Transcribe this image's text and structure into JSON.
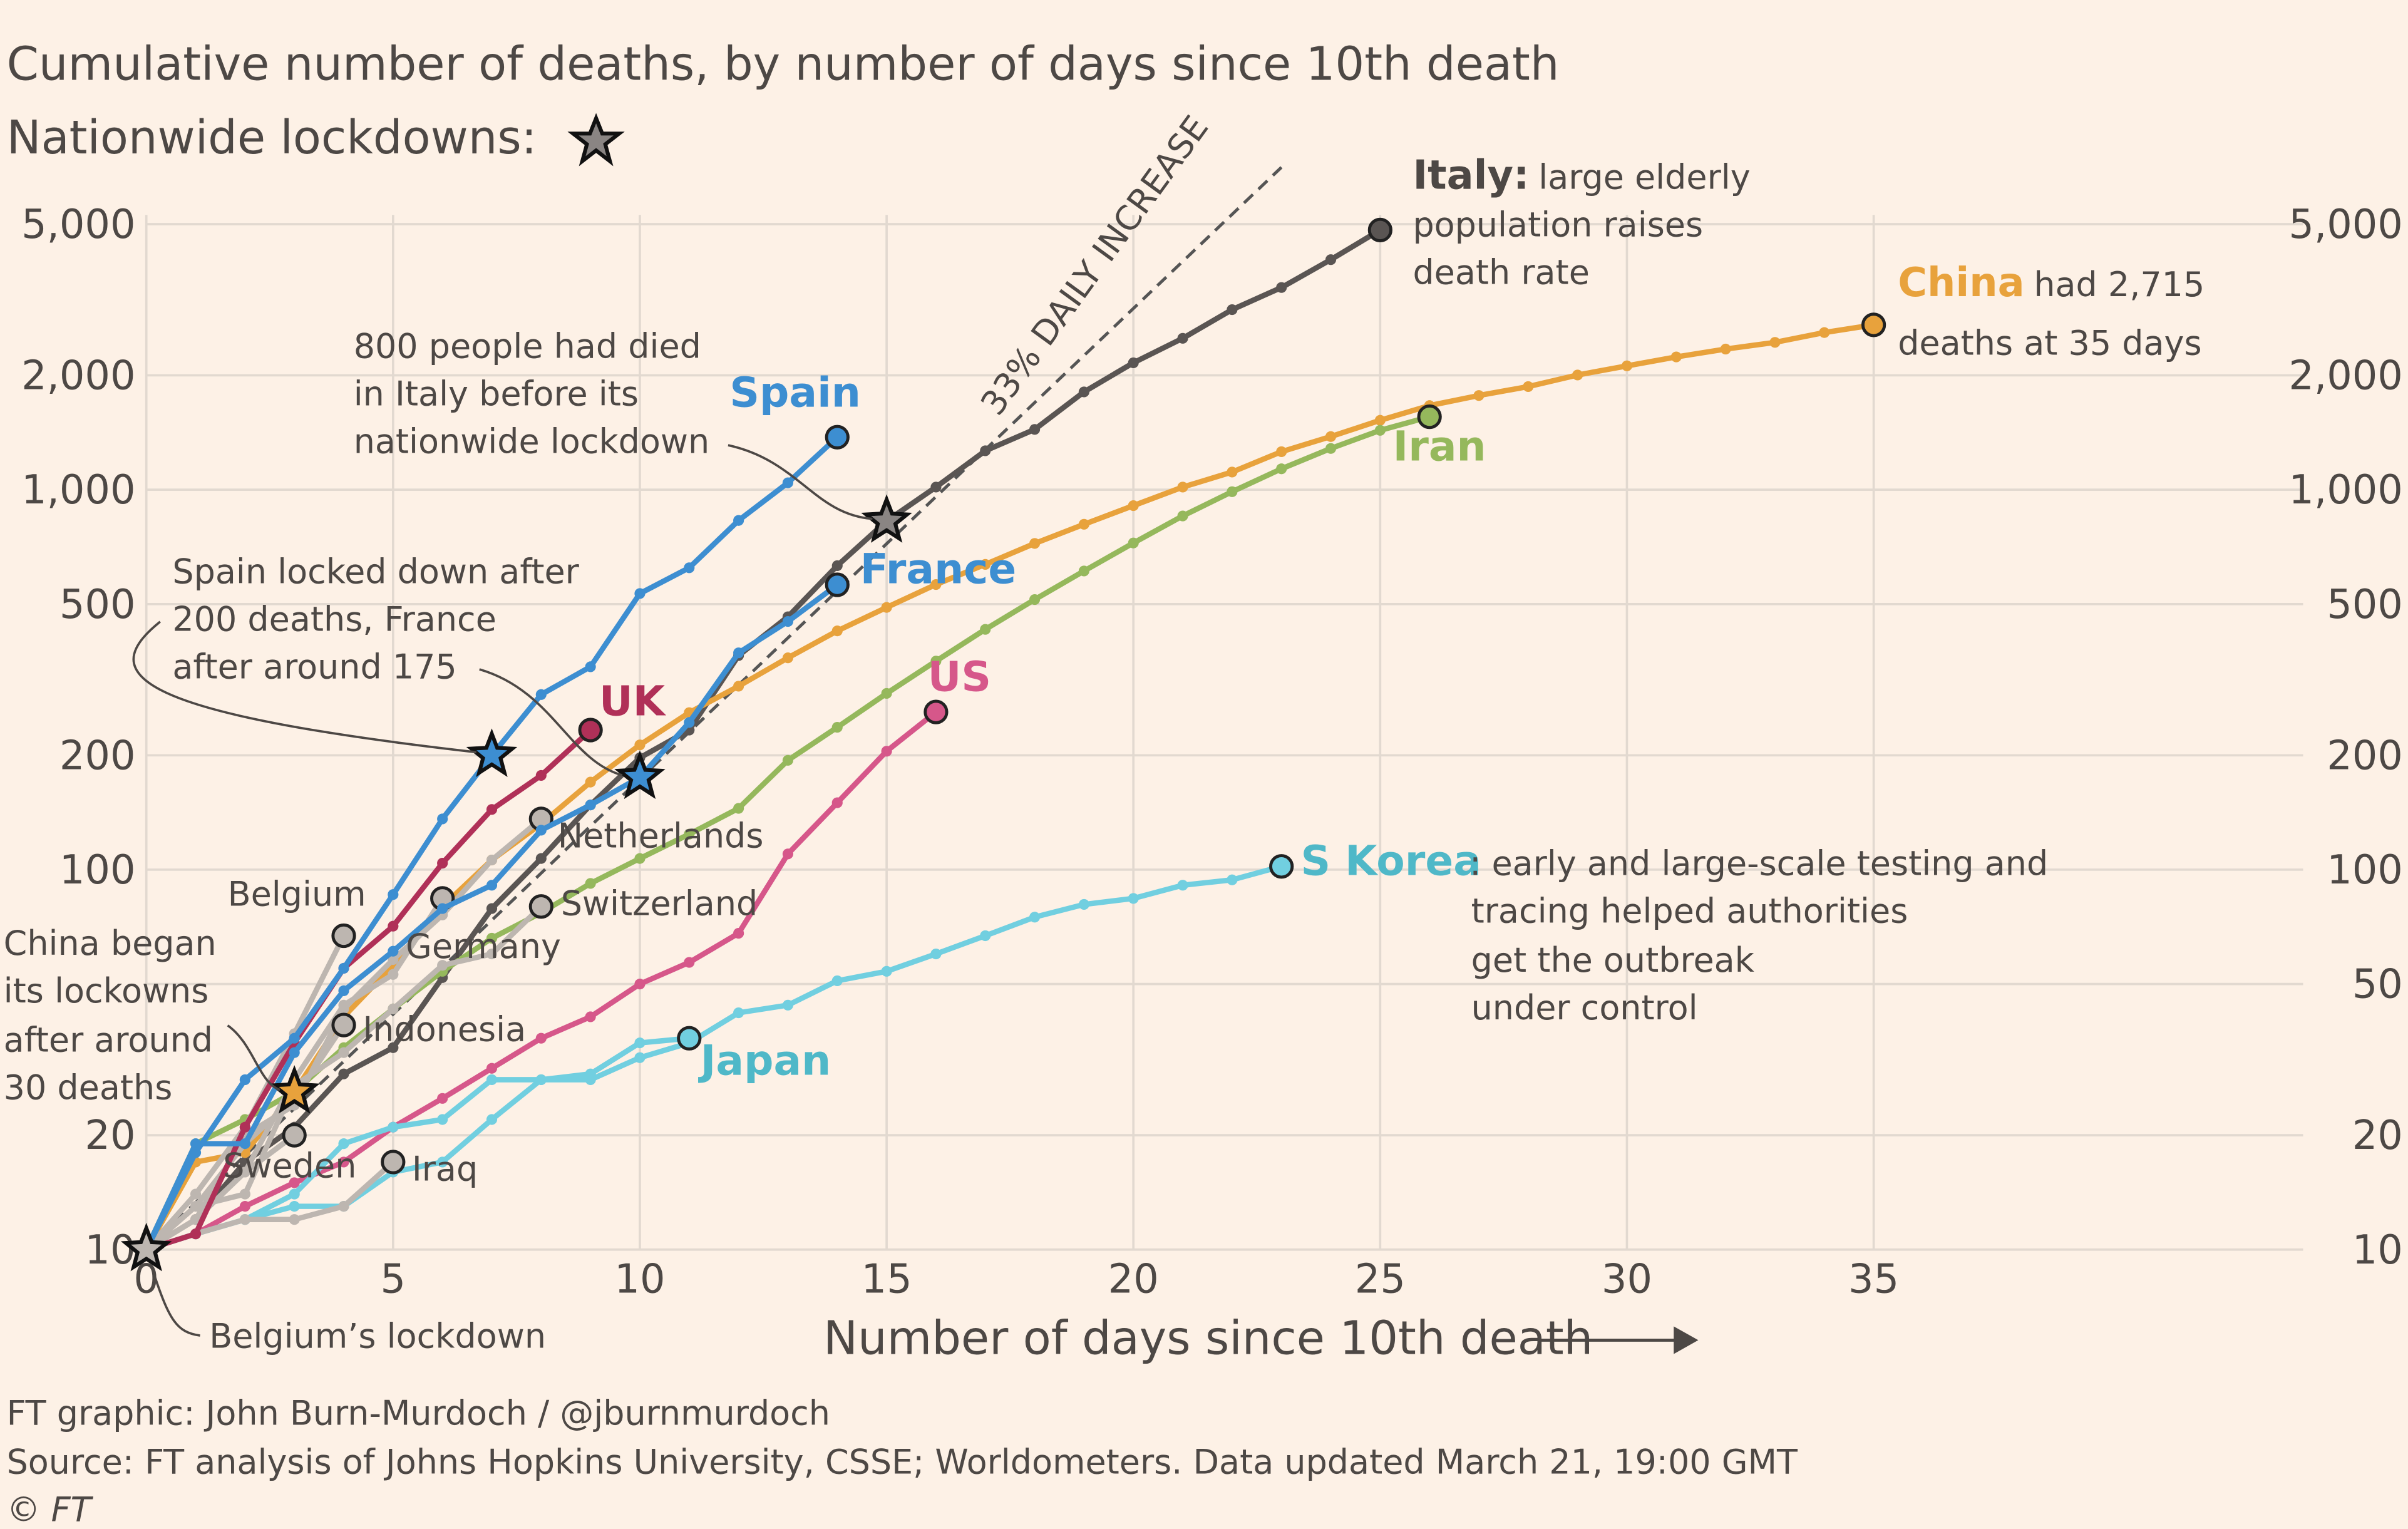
{
  "subtitle": "Cumulative number of deaths, by number of days since 10th death",
  "legend_text": "Nationwide lockdowns:",
  "footer": {
    "credit": "FT graphic: John Burn-Murdoch / @jburnmurdoch",
    "source": "Source: FT analysis of Johns Hopkins University, CSSE; Worldometers. Data updated March 21, 19:00 GMT",
    "copyright": "© FT"
  },
  "annotations": {
    "italy_bold": "Italy:",
    "italy_1": "large elderly",
    "italy_2": "population raises",
    "italy_3": "death rate",
    "china_bold": "China",
    "china_1": "had 2,715",
    "china_2": "deaths at 35 days",
    "skorea_1": ": early and large-scale testing and",
    "skorea_2": "tracing helped authorities",
    "skorea_3": "get the outbreak",
    "skorea_4": "under control",
    "italy_lock_1": "800 people had died",
    "italy_lock_2": "in Italy before its",
    "italy_lock_3": "nationwide lockdown",
    "spain_lock_1": "Spain locked down after",
    "spain_lock_2": "200 deaths, France",
    "spain_lock_3": "after around 175",
    "china_lock_1": "China began",
    "china_lock_2": "its lockowns",
    "china_lock_3": "after around",
    "china_lock_4": "30 deaths",
    "belgium_lock": "Belgium’s lockdown",
    "trend": "33% DAILY INCREASE"
  },
  "chart_data": {
    "type": "line",
    "xlabel": "Number of days since 10th death",
    "ylabel": "",
    "xlim": [
      0,
      40
    ],
    "ylim": [
      10,
      5000
    ],
    "yscale": "log",
    "grid": true,
    "x_ticks": [
      "0",
      "5",
      "10",
      "15",
      "20",
      "25",
      "30",
      "35"
    ],
    "y_ticks_left": [
      "5,000",
      "2,000",
      "1,000",
      "500",
      "200",
      "100",
      "20",
      "10"
    ],
    "y_ticks_right": [
      "5,000",
      "2,000",
      "1,000",
      "500",
      "200",
      "100",
      "50",
      "20",
      "10"
    ],
    "trend_line": {
      "daily_growth": 0.33,
      "start": 10,
      "x_end": 23
    },
    "series": [
      {
        "name": "Italy",
        "color": "#5a5553",
        "values": [
          10,
          12,
          17,
          21,
          29,
          34,
          52,
          79,
          107,
          148,
          197,
          233,
          366,
          463,
          631,
          827,
          1016,
          1266,
          1441,
          1809,
          2158,
          2503,
          2978,
          3405,
          4032,
          4825
        ]
      },
      {
        "name": "China",
        "color": "#e8a23c",
        "values": [
          10,
          17,
          18,
          26,
          41,
          56,
          80,
          106,
          132,
          170,
          213,
          259,
          304,
          361,
          425,
          490,
          563,
          636,
          722,
          811,
          908,
          1016,
          1113,
          1259,
          1380,
          1523,
          1665,
          1770,
          1868,
          2004,
          2118,
          2236,
          2345,
          2442,
          2592,
          2715
        ]
      },
      {
        "name": "Iran",
        "color": "#95b85c",
        "values": [
          10,
          19,
          22,
          26,
          34,
          43,
          54,
          66,
          77,
          92,
          107,
          124,
          145,
          194,
          237,
          291,
          354,
          429,
          514,
          611,
          724,
          853,
          988,
          1135,
          1284,
          1433,
          1556
        ]
      },
      {
        "name": "US",
        "color": "#d6578a",
        "values": [
          10,
          11,
          13,
          15,
          17,
          21,
          25,
          30,
          36,
          41,
          50,
          57,
          68,
          110,
          150,
          205,
          260
        ]
      },
      {
        "name": "S Korea",
        "color": "#71cfe0",
        "values": [
          10,
          11,
          12,
          13,
          13,
          16,
          17,
          22,
          28,
          28,
          32,
          35,
          42,
          44,
          51,
          54,
          60,
          67,
          75,
          81,
          84,
          91,
          94,
          102
        ]
      },
      {
        "name": "Japan",
        "color": "#71cfe0",
        "values": [
          10,
          11,
          12,
          14,
          19,
          21,
          22,
          28,
          28,
          29,
          35,
          36
        ]
      },
      {
        "name": "Netherlands",
        "color": "#bdb6b0",
        "values": [
          10,
          12,
          20,
          24,
          43,
          58,
          76,
          106,
          136
        ]
      },
      {
        "name": "Belgium",
        "color": "#bdb6b0",
        "values": [
          10,
          14,
          21,
          37,
          67
        ]
      },
      {
        "name": "Germany",
        "color": "#bdb6b0",
        "values": [
          10,
          12,
          16,
          28,
          44,
          53,
          84
        ]
      },
      {
        "name": "Switzerland",
        "color": "#bdb6b0",
        "values": [
          10,
          13,
          14,
          27,
          33,
          43,
          56,
          60,
          80
        ]
      },
      {
        "name": "Indonesia",
        "color": "#bdb6b0",
        "values": [
          10,
          13,
          19,
          25,
          39
        ]
      },
      {
        "name": "Sweden",
        "color": "#bdb6b0",
        "values": [
          10,
          12,
          16,
          20
        ]
      },
      {
        "name": "Iraq",
        "color": "#bdb6b0",
        "values": [
          10,
          11,
          12,
          12,
          13,
          17
        ]
      },
      {
        "name": "UK",
        "color": "#b03058",
        "values": [
          10,
          11,
          21,
          35,
          55,
          71,
          104,
          144,
          177,
          233
        ]
      },
      {
        "name": "France",
        "color": "#3d8ed1",
        "values": [
          10,
          19,
          19,
          33,
          48,
          61,
          79,
          91,
          127,
          148,
          175,
          244,
          372,
          450,
          562
        ]
      },
      {
        "name": "Spain",
        "color": "#3d8ed1",
        "values": [
          10,
          18,
          28,
          36,
          55,
          86,
          136,
          200,
          289,
          342,
          533,
          623,
          830,
          1043,
          1375
        ]
      }
    ],
    "lockdowns": [
      {
        "country": "Belgium",
        "day": 0,
        "value": 10,
        "color": "#bdb6b0"
      },
      {
        "country": "China",
        "day": 3,
        "value": 26,
        "color": "#e8a23c"
      },
      {
        "country": "Spain",
        "day": 7,
        "value": 200,
        "color": "#3d8ed1"
      },
      {
        "country": "France",
        "day": 10,
        "value": 175,
        "color": "#3d8ed1"
      },
      {
        "country": "Italy",
        "day": 15,
        "value": 827,
        "color": "#8a8583"
      }
    ]
  }
}
